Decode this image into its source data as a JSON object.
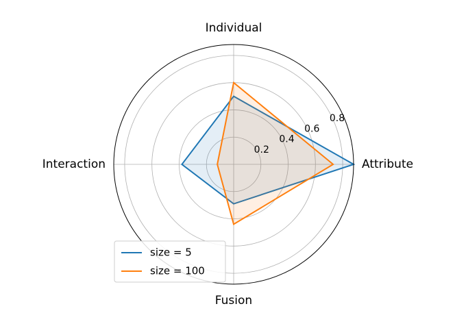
{
  "chart_data": {
    "type": "radar",
    "categories": [
      "Attribute",
      "Individual",
      "Interaction",
      "Fusion"
    ],
    "series": [
      {
        "name": "size = 5",
        "color": "#1f77b4",
        "values": [
          0.88,
          0.5,
          0.38,
          0.29
        ]
      },
      {
        "name": "size = 100",
        "color": "#ff7f0e",
        "values": [
          0.73,
          0.6,
          0.12,
          0.44
        ]
      }
    ],
    "ylim": [
      0,
      0.88
    ],
    "yticks": [
      0.2,
      0.4,
      0.6,
      0.8
    ],
    "grid": true,
    "legend": "lower left"
  }
}
